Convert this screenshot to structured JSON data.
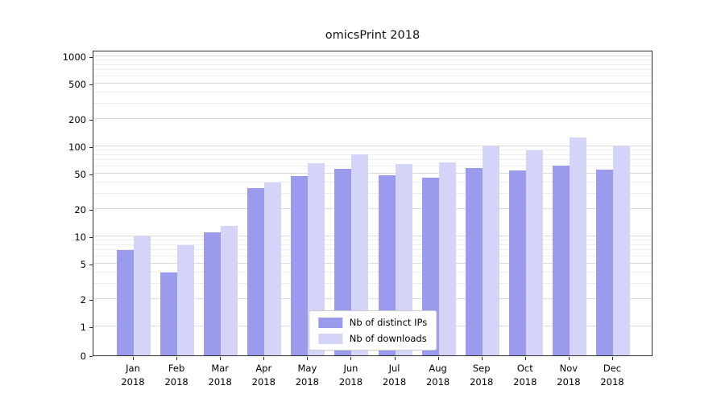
{
  "title": "omicsPrint 2018",
  "colors": {
    "ips_bar": "#9b9bee",
    "downloads_bar": "#d4d4f8",
    "grid_major": "#dcdcdc",
    "grid_minor": "#eeeeee",
    "spine": "#2e2e2e",
    "background": "#ffffff"
  },
  "chart_data": {
    "type": "bar",
    "title": "omicsPrint 2018",
    "categories": [
      "Jan 2018",
      "Feb 2018",
      "Mar 2018",
      "Apr 2018",
      "May 2018",
      "Jun 2018",
      "Jul 2018",
      "Aug 2018",
      "Sep 2018",
      "Oct 2018",
      "Nov 2018",
      "Dec 2018"
    ],
    "series": [
      {
        "name": "Nb of distinct IPs",
        "key": "distinct-ips",
        "color": "#9b9bee",
        "values": [
          7,
          4,
          11,
          34,
          47,
          56,
          48,
          45,
          58,
          54,
          61,
          55
        ]
      },
      {
        "name": "Nb of downloads",
        "key": "downloads",
        "color": "#d4d4f8",
        "values": [
          10,
          8,
          13,
          40,
          65,
          82,
          64,
          66,
          100,
          90,
          125,
          100
        ]
      }
    ],
    "yscale": "symlog",
    "ylim": [
      0,
      1180
    ],
    "y_major_ticks": [
      0,
      1,
      2,
      5,
      10,
      20,
      50,
      100,
      200,
      500,
      1000
    ],
    "y_minor_ticks": [
      3,
      4,
      6,
      7,
      8,
      9,
      30,
      40,
      60,
      70,
      80,
      90,
      300,
      400,
      600,
      700,
      800,
      900
    ],
    "grid": "on",
    "legend_position": "lower center"
  }
}
